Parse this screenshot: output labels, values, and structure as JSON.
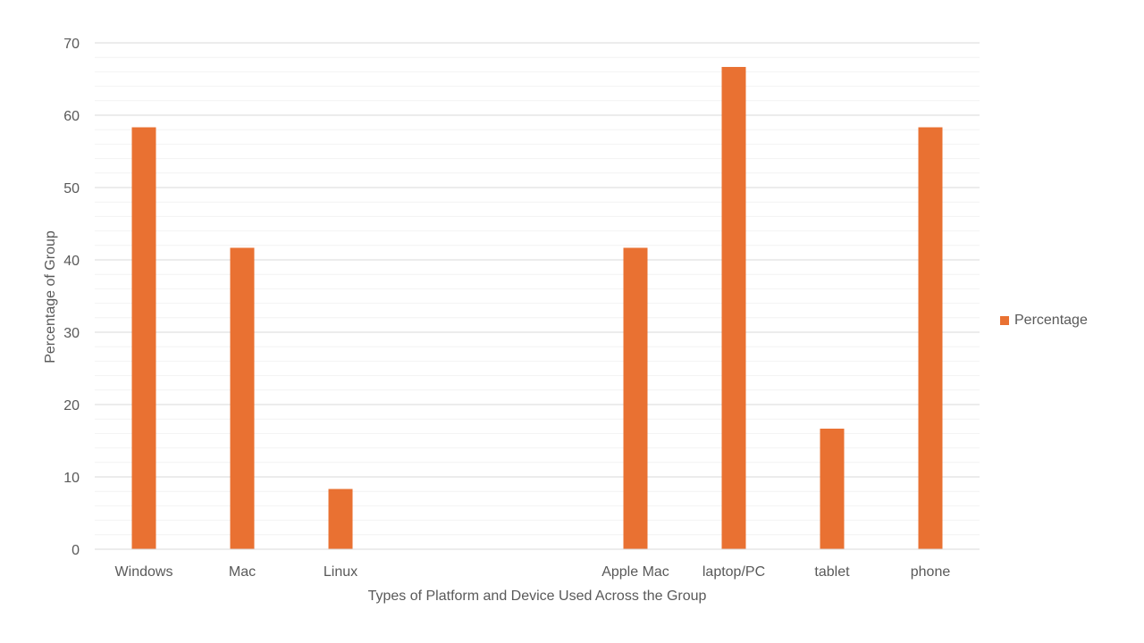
{
  "chart_data": {
    "type": "bar",
    "categories": [
      "Windows",
      "Mac",
      "Linux",
      "",
      "",
      "Apple Mac",
      "laptop/PC",
      "tablet",
      "phone"
    ],
    "series": [
      {
        "name": "Percentage",
        "values": [
          58.33,
          41.67,
          8.33,
          null,
          null,
          41.67,
          66.67,
          16.67,
          58.33
        ],
        "color": "#E97132"
      }
    ],
    "title": "",
    "xlabel": "Types of Platform and Device Used Across the Group",
    "ylabel": "Percentage of Group",
    "ylim": [
      0,
      70
    ],
    "yticks": [
      0,
      10,
      20,
      30,
      40,
      50,
      60,
      70
    ],
    "grid": {
      "major": true,
      "minor": true
    },
    "legend_position": "right"
  }
}
